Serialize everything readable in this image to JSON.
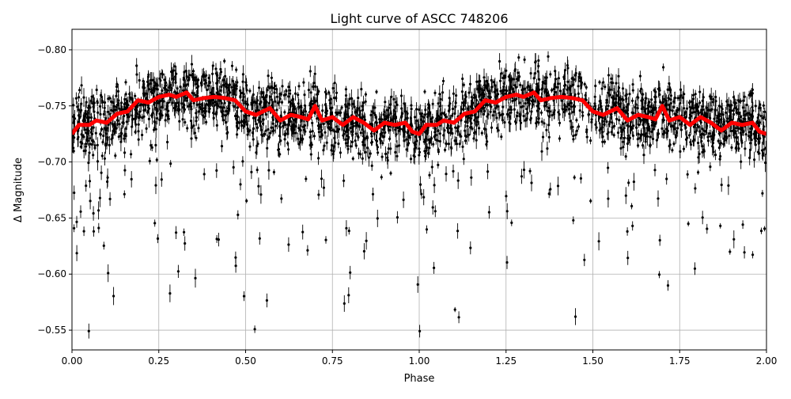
{
  "chart_data": {
    "type": "scatter",
    "title": "Light curve of ASCC 748206",
    "xlabel": "Phase",
    "ylabel": "Δ Magnitude",
    "xlim": [
      0,
      2
    ],
    "ylim": [
      -0.8183,
      -0.5324
    ],
    "y_inverted": true,
    "grid": true,
    "x_ticks": [
      "0.00",
      "0.25",
      "0.50",
      "0.75",
      "1.00",
      "1.25",
      "1.50",
      "1.75",
      "2.00"
    ],
    "x_tick_values": [
      0,
      0.25,
      0.5,
      0.75,
      1.0,
      1.25,
      1.5,
      1.75,
      2.0
    ],
    "y_ticks": [
      "−0.80",
      "−0.75",
      "−0.70",
      "−0.65",
      "−0.60",
      "−0.55"
    ],
    "y_tick_values": [
      -0.8,
      -0.75,
      -0.7,
      -0.65,
      -0.6,
      -0.55
    ],
    "colors": {
      "points": "#000000",
      "trend": "#ff0000",
      "grid": "#b0b0b0"
    },
    "series": [
      {
        "kind": "points-with-errorbars",
        "color": "#000000",
        "typical_scatter": 0.03,
        "faint_tail_to": -0.53
      },
      {
        "kind": "binned-trend",
        "color": "#ff0000",
        "phase": [
          0,
          0.02,
          0.05,
          0.07,
          0.1,
          0.13,
          0.16,
          0.19,
          0.22,
          0.25,
          0.28,
          0.3,
          0.33,
          0.35,
          0.38,
          0.41,
          0.44,
          0.47,
          0.5,
          0.53,
          0.55,
          0.57,
          0.6,
          0.63,
          0.66,
          0.68,
          0.7,
          0.72,
          0.75,
          0.78,
          0.81,
          0.84,
          0.87,
          0.9,
          0.93,
          0.96,
          0.98,
          1.0
        ],
        "magnitude": [
          -0.725,
          -0.733,
          -0.733,
          -0.737,
          -0.735,
          -0.743,
          -0.745,
          -0.755,
          -0.753,
          -0.758,
          -0.76,
          -0.758,
          -0.762,
          -0.755,
          -0.757,
          -0.758,
          -0.757,
          -0.755,
          -0.745,
          -0.742,
          -0.745,
          -0.748,
          -0.737,
          -0.742,
          -0.74,
          -0.738,
          -0.75,
          -0.737,
          -0.74,
          -0.733,
          -0.74,
          -0.735,
          -0.728,
          -0.735,
          -0.733,
          -0.735,
          -0.727,
          -0.725
        ],
        "repeats_every_phase": 1
      }
    ]
  }
}
